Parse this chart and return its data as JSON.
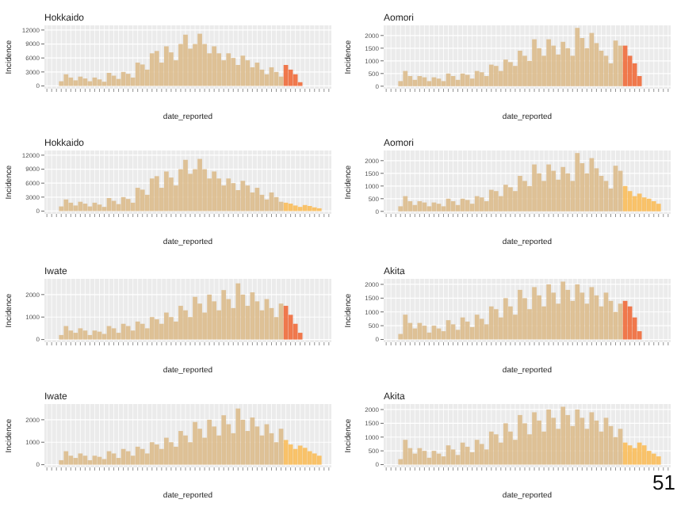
{
  "chart_data": [
    {
      "type": "bar",
      "title": "Hokkaido",
      "xlabel": "date_reported",
      "ylabel": "Incidence",
      "ylim": [
        -600,
        13000
      ],
      "yticks": [
        0,
        3000,
        6000,
        9000,
        12000
      ],
      "grid": true,
      "categories": [
        null,
        null,
        null,
        null,
        null,
        null,
        null,
        null,
        null,
        null,
        null,
        null,
        null,
        null,
        null,
        null,
        null,
        null,
        null,
        null,
        null,
        null,
        null,
        null,
        null,
        null,
        null,
        null,
        null,
        null,
        null,
        null,
        null,
        null,
        null,
        null,
        null,
        null,
        null,
        null,
        null,
        null,
        null,
        null,
        null,
        null,
        null,
        null,
        null,
        null,
        null,
        null,
        null,
        null,
        null,
        null,
        null,
        null,
        null,
        null
      ],
      "series": [
        {
          "color": "#dcbb8c",
          "values": [
            null,
            null,
            null,
            1000,
            2500,
            1800,
            1200,
            2000,
            1600,
            1000,
            1800,
            1400,
            900,
            2800,
            2200,
            1500,
            3000,
            2600,
            1800,
            5000,
            4600,
            3500,
            7000,
            7500,
            5000,
            8500,
            7200,
            5500,
            9000,
            11000,
            8000,
            9000,
            11200,
            9000,
            7000,
            8500,
            7000,
            5500,
            7000,
            6000,
            4500,
            6500,
            5500,
            4000,
            5000,
            3500,
            2500,
            4000,
            3000,
            2000,
            null,
            null,
            null,
            null,
            null,
            null,
            null,
            null,
            null,
            null
          ]
        },
        {
          "color": "#f06a3a",
          "values": [
            null,
            null,
            null,
            null,
            null,
            null,
            null,
            null,
            null,
            null,
            null,
            null,
            null,
            null,
            null,
            null,
            null,
            null,
            null,
            null,
            null,
            null,
            null,
            null,
            null,
            null,
            null,
            null,
            null,
            null,
            null,
            null,
            null,
            null,
            null,
            null,
            null,
            null,
            null,
            null,
            null,
            null,
            null,
            null,
            null,
            null,
            null,
            null,
            null,
            null,
            4500,
            3500,
            2500,
            800,
            null,
            null,
            null,
            null,
            null,
            null
          ]
        }
      ]
    },
    {
      "type": "bar",
      "title": "Aomori",
      "xlabel": "date_reported",
      "ylabel": "Incidence",
      "ylim": [
        -100,
        2400
      ],
      "yticks": [
        0,
        500,
        1000,
        1500,
        2000
      ],
      "grid": true,
      "categories": [
        null,
        null,
        null,
        null,
        null,
        null,
        null,
        null,
        null,
        null,
        null,
        null,
        null,
        null,
        null,
        null,
        null,
        null,
        null,
        null,
        null,
        null,
        null,
        null,
        null,
        null,
        null,
        null,
        null,
        null,
        null,
        null,
        null,
        null,
        null,
        null,
        null,
        null,
        null,
        null,
        null,
        null,
        null,
        null,
        null,
        null,
        null,
        null,
        null,
        null,
        null,
        null,
        null,
        null,
        null,
        null,
        null,
        null,
        null,
        null
      ],
      "series": [
        {
          "color": "#dcbb8c",
          "values": [
            null,
            null,
            null,
            200,
            600,
            400,
            250,
            400,
            350,
            200,
            350,
            300,
            200,
            500,
            400,
            250,
            500,
            450,
            300,
            600,
            550,
            400,
            850,
            800,
            600,
            1050,
            950,
            800,
            1400,
            1200,
            1000,
            1850,
            1500,
            1200,
            1850,
            1600,
            1250,
            1750,
            1500,
            1200,
            2300,
            1900,
            1500,
            2100,
            1700,
            1400,
            1200,
            900,
            1800,
            1600,
            null,
            null,
            null,
            null,
            null,
            null,
            null,
            null,
            null,
            null
          ]
        },
        {
          "color": "#f06a3a",
          "values": [
            null,
            null,
            null,
            null,
            null,
            null,
            null,
            null,
            null,
            null,
            null,
            null,
            null,
            null,
            null,
            null,
            null,
            null,
            null,
            null,
            null,
            null,
            null,
            null,
            null,
            null,
            null,
            null,
            null,
            null,
            null,
            null,
            null,
            null,
            null,
            null,
            null,
            null,
            null,
            null,
            null,
            null,
            null,
            null,
            null,
            null,
            null,
            null,
            null,
            null,
            1600,
            1200,
            900,
            400,
            null,
            null,
            null,
            null,
            null,
            null
          ]
        }
      ]
    },
    {
      "type": "bar",
      "title": "Hokkaido",
      "xlabel": "date_reported",
      "ylabel": "Incidence",
      "ylim": [
        -600,
        13000
      ],
      "yticks": [
        0,
        3000,
        6000,
        9000,
        12000
      ],
      "grid": true,
      "categories": [
        null,
        null,
        null,
        null,
        null,
        null,
        null,
        null,
        null,
        null,
        null,
        null,
        null,
        null,
        null,
        null,
        null,
        null,
        null,
        null,
        null,
        null,
        null,
        null,
        null,
        null,
        null,
        null,
        null,
        null,
        null,
        null,
        null,
        null,
        null,
        null,
        null,
        null,
        null,
        null,
        null,
        null,
        null,
        null,
        null,
        null,
        null,
        null,
        null,
        null,
        null,
        null,
        null,
        null,
        null,
        null,
        null,
        null,
        null,
        null
      ],
      "series": [
        {
          "color": "#dcbb8c",
          "values": [
            null,
            null,
            null,
            1000,
            2500,
            1800,
            1200,
            2000,
            1600,
            1000,
            1800,
            1400,
            900,
            2800,
            2200,
            1500,
            3000,
            2600,
            1800,
            5000,
            4600,
            3500,
            7000,
            7500,
            5000,
            8500,
            7200,
            5500,
            9000,
            11000,
            8000,
            9000,
            11200,
            9000,
            7000,
            8500,
            7000,
            5500,
            7000,
            6000,
            4500,
            6500,
            5500,
            4000,
            5000,
            3500,
            2500,
            4000,
            3000,
            2000,
            null,
            null,
            null,
            null,
            null,
            null,
            null,
            null,
            null,
            null
          ]
        },
        {
          "color": "#f9bd5a",
          "values": [
            null,
            null,
            null,
            null,
            null,
            null,
            null,
            null,
            null,
            null,
            null,
            null,
            null,
            null,
            null,
            null,
            null,
            null,
            null,
            null,
            null,
            null,
            null,
            null,
            null,
            null,
            null,
            null,
            null,
            null,
            null,
            null,
            null,
            null,
            null,
            null,
            null,
            null,
            null,
            null,
            null,
            null,
            null,
            null,
            null,
            null,
            null,
            null,
            null,
            null,
            1800,
            1600,
            1200,
            900,
            1300,
            1100,
            800,
            600,
            null,
            null
          ]
        }
      ]
    },
    {
      "type": "bar",
      "title": "Aomori",
      "xlabel": "date_reported",
      "ylabel": "Incidence",
      "ylim": [
        -100,
        2400
      ],
      "yticks": [
        0,
        500,
        1000,
        1500,
        2000
      ],
      "grid": true,
      "categories": [
        null,
        null,
        null,
        null,
        null,
        null,
        null,
        null,
        null,
        null,
        null,
        null,
        null,
        null,
        null,
        null,
        null,
        null,
        null,
        null,
        null,
        null,
        null,
        null,
        null,
        null,
        null,
        null,
        null,
        null,
        null,
        null,
        null,
        null,
        null,
        null,
        null,
        null,
        null,
        null,
        null,
        null,
        null,
        null,
        null,
        null,
        null,
        null,
        null,
        null,
        null,
        null,
        null,
        null,
        null,
        null,
        null,
        null,
        null,
        null
      ],
      "series": [
        {
          "color": "#dcbb8c",
          "values": [
            null,
            null,
            null,
            200,
            600,
            400,
            250,
            400,
            350,
            200,
            350,
            300,
            200,
            500,
            400,
            250,
            500,
            450,
            300,
            600,
            550,
            400,
            850,
            800,
            600,
            1050,
            950,
            800,
            1400,
            1200,
            1000,
            1850,
            1500,
            1200,
            1850,
            1600,
            1250,
            1750,
            1500,
            1200,
            2300,
            1900,
            1500,
            2100,
            1700,
            1400,
            1200,
            900,
            1800,
            1600,
            null,
            null,
            null,
            null,
            null,
            null,
            null,
            null,
            null,
            null
          ]
        },
        {
          "color": "#f9bd5a",
          "values": [
            null,
            null,
            null,
            null,
            null,
            null,
            null,
            null,
            null,
            null,
            null,
            null,
            null,
            null,
            null,
            null,
            null,
            null,
            null,
            null,
            null,
            null,
            null,
            null,
            null,
            null,
            null,
            null,
            null,
            null,
            null,
            null,
            null,
            null,
            null,
            null,
            null,
            null,
            null,
            null,
            null,
            null,
            null,
            null,
            null,
            null,
            null,
            null,
            null,
            null,
            1000,
            800,
            600,
            700,
            550,
            500,
            400,
            300,
            null,
            null
          ]
        }
      ]
    },
    {
      "type": "bar",
      "title": "Iwate",
      "xlabel": "date_reported",
      "ylabel": "Incidence",
      "ylim": [
        -120,
        2700
      ],
      "yticks": [
        0,
        1000,
        2000
      ],
      "grid": true,
      "categories": [
        null,
        null,
        null,
        null,
        null,
        null,
        null,
        null,
        null,
        null,
        null,
        null,
        null,
        null,
        null,
        null,
        null,
        null,
        null,
        null,
        null,
        null,
        null,
        null,
        null,
        null,
        null,
        null,
        null,
        null,
        null,
        null,
        null,
        null,
        null,
        null,
        null,
        null,
        null,
        null,
        null,
        null,
        null,
        null,
        null,
        null,
        null,
        null,
        null,
        null,
        null,
        null,
        null,
        null,
        null,
        null,
        null,
        null,
        null,
        null
      ],
      "series": [
        {
          "color": "#dcbb8c",
          "values": [
            null,
            null,
            null,
            200,
            600,
            400,
            300,
            500,
            400,
            200,
            400,
            350,
            250,
            600,
            500,
            300,
            700,
            600,
            400,
            800,
            700,
            500,
            1000,
            900,
            700,
            1200,
            1000,
            800,
            1500,
            1300,
            1000,
            1900,
            1600,
            1200,
            2000,
            1700,
            1300,
            2200,
            1800,
            1400,
            2500,
            2000,
            1500,
            2100,
            1700,
            1300,
            1800,
            1400,
            1000,
            1600,
            null,
            null,
            null,
            null,
            null,
            null,
            null,
            null,
            null,
            null
          ]
        },
        {
          "color": "#f06a3a",
          "values": [
            null,
            null,
            null,
            null,
            null,
            null,
            null,
            null,
            null,
            null,
            null,
            null,
            null,
            null,
            null,
            null,
            null,
            null,
            null,
            null,
            null,
            null,
            null,
            null,
            null,
            null,
            null,
            null,
            null,
            null,
            null,
            null,
            null,
            null,
            null,
            null,
            null,
            null,
            null,
            null,
            null,
            null,
            null,
            null,
            null,
            null,
            null,
            null,
            null,
            null,
            1500,
            1100,
            700,
            300,
            null,
            null,
            null,
            null,
            null,
            null
          ]
        }
      ]
    },
    {
      "type": "bar",
      "title": "Akita",
      "xlabel": "date_reported",
      "ylabel": "Incidence",
      "ylim": [
        -100,
        2200
      ],
      "yticks": [
        0,
        500,
        1000,
        1500,
        2000
      ],
      "grid": true,
      "categories": [
        null,
        null,
        null,
        null,
        null,
        null,
        null,
        null,
        null,
        null,
        null,
        null,
        null,
        null,
        null,
        null,
        null,
        null,
        null,
        null,
        null,
        null,
        null,
        null,
        null,
        null,
        null,
        null,
        null,
        null,
        null,
        null,
        null,
        null,
        null,
        null,
        null,
        null,
        null,
        null,
        null,
        null,
        null,
        null,
        null,
        null,
        null,
        null,
        null,
        null,
        null,
        null,
        null,
        null,
        null,
        null,
        null,
        null,
        null,
        null
      ],
      "series": [
        {
          "color": "#dcbb8c",
          "values": [
            null,
            null,
            null,
            200,
            900,
            600,
            400,
            600,
            500,
            250,
            500,
            400,
            300,
            700,
            550,
            350,
            800,
            650,
            450,
            900,
            750,
            550,
            1200,
            1100,
            800,
            1500,
            1200,
            900,
            1800,
            1500,
            1100,
            1900,
            1600,
            1200,
            2000,
            1700,
            1300,
            2100,
            1800,
            1400,
            2000,
            1700,
            1300,
            1900,
            1600,
            1200,
            1700,
            1400,
            1000,
            1300,
            null,
            null,
            null,
            null,
            null,
            null,
            null,
            null,
            null,
            null
          ]
        },
        {
          "color": "#f06a3a",
          "values": [
            null,
            null,
            null,
            null,
            null,
            null,
            null,
            null,
            null,
            null,
            null,
            null,
            null,
            null,
            null,
            null,
            null,
            null,
            null,
            null,
            null,
            null,
            null,
            null,
            null,
            null,
            null,
            null,
            null,
            null,
            null,
            null,
            null,
            null,
            null,
            null,
            null,
            null,
            null,
            null,
            null,
            null,
            null,
            null,
            null,
            null,
            null,
            null,
            null,
            null,
            1400,
            1200,
            800,
            300,
            null,
            null,
            null,
            null,
            null,
            null
          ]
        }
      ]
    },
    {
      "type": "bar",
      "title": "Iwate",
      "xlabel": "date_reported",
      "ylabel": "Incidence",
      "ylim": [
        -120,
        2700
      ],
      "yticks": [
        0,
        1000,
        2000
      ],
      "grid": true,
      "categories": [
        null,
        null,
        null,
        null,
        null,
        null,
        null,
        null,
        null,
        null,
        null,
        null,
        null,
        null,
        null,
        null,
        null,
        null,
        null,
        null,
        null,
        null,
        null,
        null,
        null,
        null,
        null,
        null,
        null,
        null,
        null,
        null,
        null,
        null,
        null,
        null,
        null,
        null,
        null,
        null,
        null,
        null,
        null,
        null,
        null,
        null,
        null,
        null,
        null,
        null,
        null,
        null,
        null,
        null,
        null,
        null,
        null,
        null,
        null,
        null
      ],
      "series": [
        {
          "color": "#dcbb8c",
          "values": [
            null,
            null,
            null,
            200,
            600,
            400,
            300,
            500,
            400,
            200,
            400,
            350,
            250,
            600,
            500,
            300,
            700,
            600,
            400,
            800,
            700,
            500,
            1000,
            900,
            700,
            1200,
            1000,
            800,
            1500,
            1300,
            1000,
            1900,
            1600,
            1200,
            2000,
            1700,
            1300,
            2200,
            1800,
            1400,
            2500,
            2000,
            1500,
            2100,
            1700,
            1300,
            1800,
            1400,
            1000,
            1600,
            null,
            null,
            null,
            null,
            null,
            null,
            null,
            null,
            null,
            null
          ]
        },
        {
          "color": "#f9bd5a",
          "values": [
            null,
            null,
            null,
            null,
            null,
            null,
            null,
            null,
            null,
            null,
            null,
            null,
            null,
            null,
            null,
            null,
            null,
            null,
            null,
            null,
            null,
            null,
            null,
            null,
            null,
            null,
            null,
            null,
            null,
            null,
            null,
            null,
            null,
            null,
            null,
            null,
            null,
            null,
            null,
            null,
            null,
            null,
            null,
            null,
            null,
            null,
            null,
            null,
            null,
            null,
            1100,
            900,
            700,
            850,
            750,
            600,
            500,
            400,
            null,
            null
          ]
        }
      ]
    },
    {
      "type": "bar",
      "title": "Akita",
      "xlabel": "date_reported",
      "ylabel": "Incidence",
      "ylim": [
        -100,
        2200
      ],
      "yticks": [
        0,
        500,
        1000,
        1500,
        2000
      ],
      "grid": true,
      "annotations": [
        "51"
      ],
      "categories": [
        null,
        null,
        null,
        null,
        null,
        null,
        null,
        null,
        null,
        null,
        null,
        null,
        null,
        null,
        null,
        null,
        null,
        null,
        null,
        null,
        null,
        null,
        null,
        null,
        null,
        null,
        null,
        null,
        null,
        null,
        null,
        null,
        null,
        null,
        null,
        null,
        null,
        null,
        null,
        null,
        null,
        null,
        null,
        null,
        null,
        null,
        null,
        null,
        null,
        null,
        null,
        null,
        null,
        null,
        null,
        null,
        null,
        null,
        null,
        null
      ],
      "series": [
        {
          "color": "#dcbb8c",
          "values": [
            null,
            null,
            null,
            200,
            900,
            600,
            400,
            600,
            500,
            250,
            500,
            400,
            300,
            700,
            550,
            350,
            800,
            650,
            450,
            900,
            750,
            550,
            1200,
            1100,
            800,
            1500,
            1200,
            900,
            1800,
            1500,
            1100,
            1900,
            1600,
            1200,
            2000,
            1700,
            1300,
            2100,
            1800,
            1400,
            2000,
            1700,
            1300,
            1900,
            1600,
            1200,
            1700,
            1400,
            1000,
            1300,
            null,
            null,
            null,
            null,
            null,
            null,
            null,
            null,
            null,
            null
          ]
        },
        {
          "color": "#f9bd5a",
          "values": [
            null,
            null,
            null,
            null,
            null,
            null,
            null,
            null,
            null,
            null,
            null,
            null,
            null,
            null,
            null,
            null,
            null,
            null,
            null,
            null,
            null,
            null,
            null,
            null,
            null,
            null,
            null,
            null,
            null,
            null,
            null,
            null,
            null,
            null,
            null,
            null,
            null,
            null,
            null,
            null,
            null,
            null,
            null,
            null,
            null,
            null,
            null,
            null,
            null,
            null,
            800,
            700,
            600,
            800,
            700,
            500,
            400,
            300,
            null,
            null
          ]
        }
      ]
    }
  ]
}
